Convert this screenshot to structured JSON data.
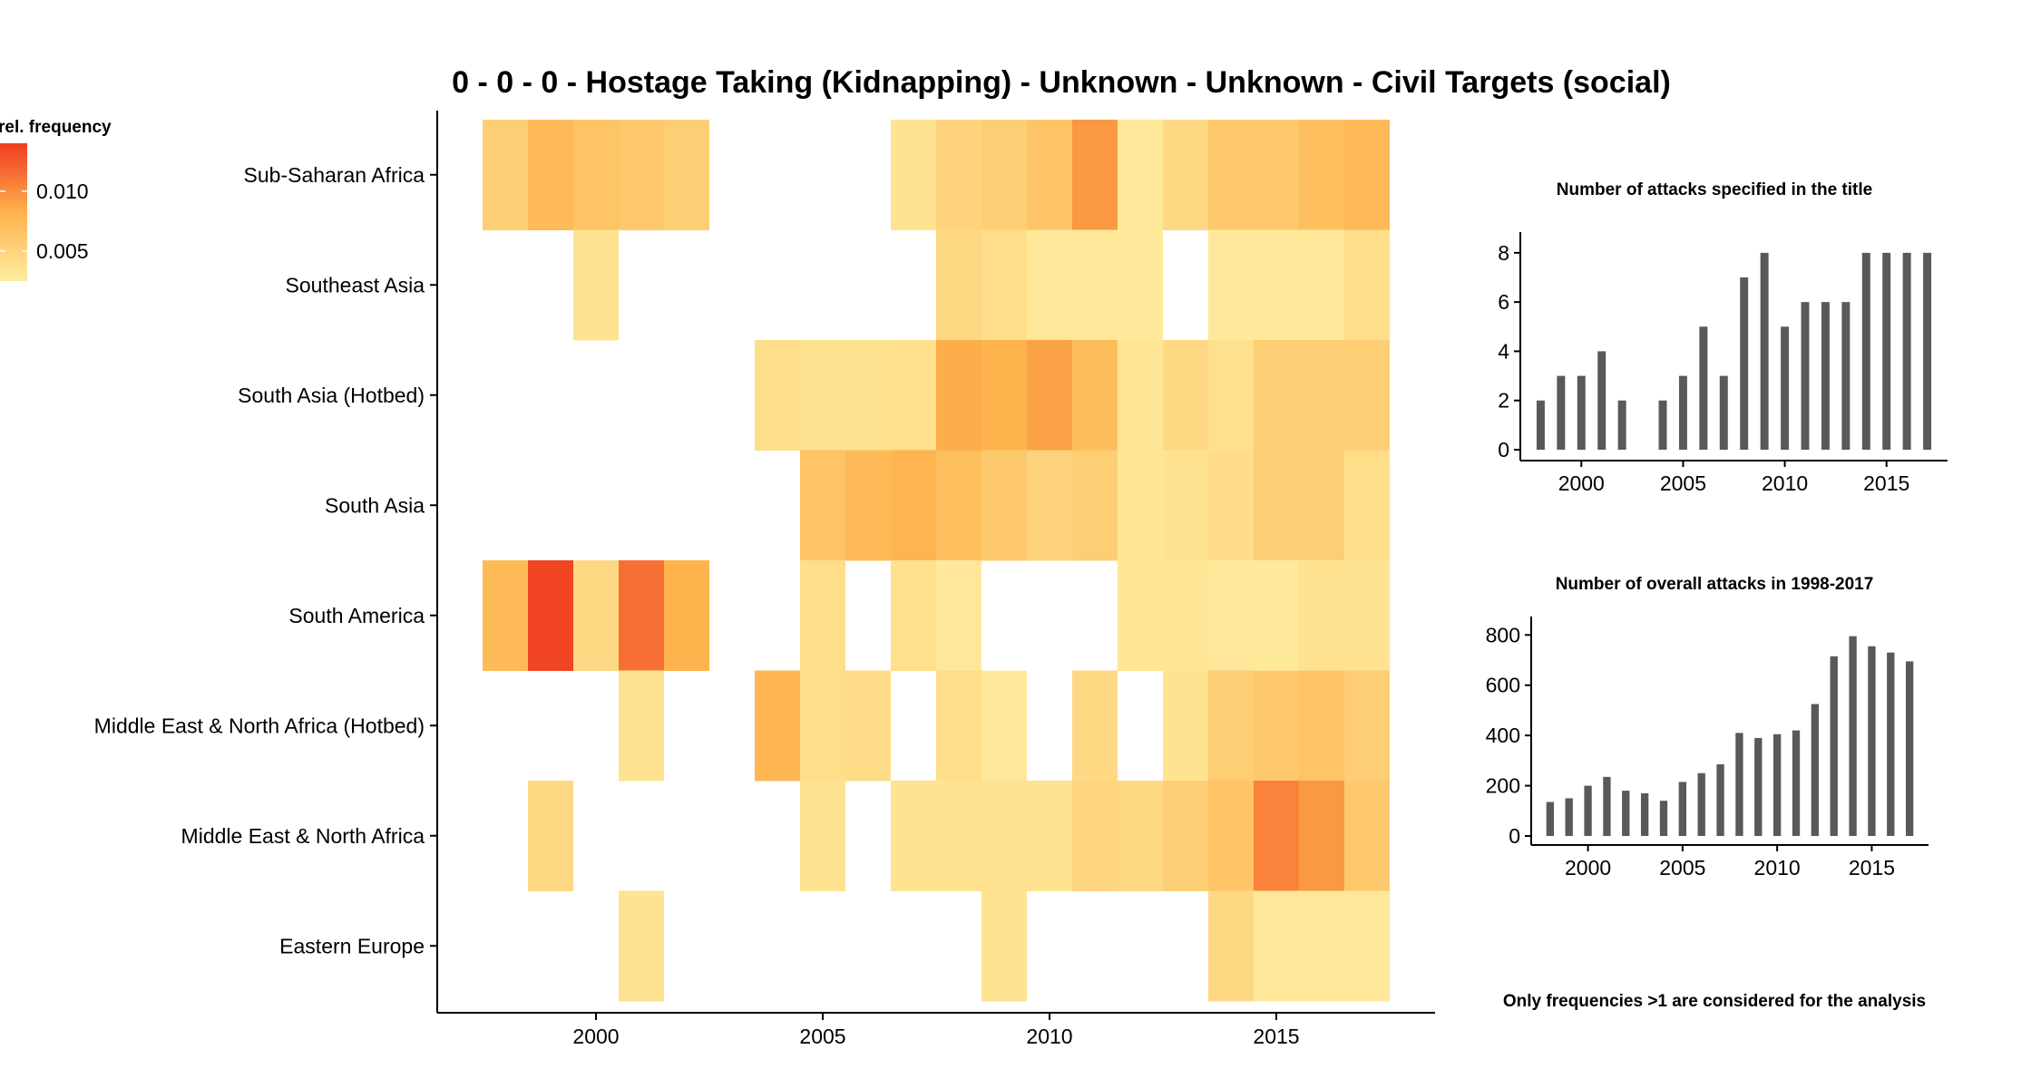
{
  "chart_data": [
    {
      "type": "heatmap",
      "title": "0 - 0 - 0 - Hostage Taking (Kidnapping) - Unknown - Unknown - Civil Targets (social)",
      "xlabel": "",
      "ylabel": "",
      "x_ticks": [
        2000,
        2005,
        2010,
        2015
      ],
      "xlim": [
        1997.5,
        2017.5
      ],
      "years": [
        1998,
        1999,
        2000,
        2001,
        2002,
        2003,
        2004,
        2005,
        2006,
        2007,
        2008,
        2009,
        2010,
        2011,
        2012,
        2013,
        2014,
        2015,
        2016,
        2017
      ],
      "regions": [
        "Sub-Saharan Africa",
        "Southeast Asia",
        "South Asia (Hotbed)",
        "South Asia",
        "South America",
        "Middle East & North Africa (Hotbed)",
        "Middle East & North Africa",
        "Eastern Europe"
      ],
      "values": [
        [
          0.0055,
          0.0075,
          0.0065,
          0.006,
          0.0055,
          null,
          null,
          null,
          null,
          0.0035,
          0.005,
          0.0055,
          0.0065,
          0.0095,
          0.003,
          0.0045,
          0.006,
          0.006,
          0.007,
          0.0075
        ],
        [
          null,
          null,
          0.0035,
          null,
          null,
          null,
          null,
          null,
          null,
          null,
          0.0045,
          0.004,
          0.003,
          0.003,
          0.003,
          null,
          0.003,
          0.003,
          0.003,
          0.004
        ],
        [
          null,
          null,
          null,
          null,
          null,
          null,
          0.004,
          0.0035,
          0.0035,
          0.0038,
          0.0085,
          0.0082,
          0.009,
          0.0072,
          0.0032,
          0.0045,
          0.0038,
          0.0055,
          0.0055,
          0.0055
        ],
        [
          null,
          null,
          null,
          null,
          null,
          null,
          null,
          0.0065,
          0.0075,
          0.008,
          0.007,
          0.006,
          0.005,
          0.0055,
          0.0032,
          0.0035,
          0.0042,
          0.0055,
          0.0055,
          0.004
        ],
        [
          0.0075,
          0.0135,
          0.0045,
          0.0115,
          0.0082,
          null,
          null,
          0.004,
          null,
          0.0038,
          0.003,
          null,
          null,
          null,
          0.0032,
          0.0032,
          0.003,
          0.0028,
          0.0035,
          0.0035
        ],
        [
          null,
          null,
          null,
          0.0035,
          null,
          null,
          0.0078,
          0.004,
          0.0042,
          null,
          0.004,
          0.003,
          null,
          0.0045,
          null,
          0.0035,
          0.0055,
          0.006,
          0.0065,
          0.0055
        ],
        [
          null,
          0.0045,
          null,
          null,
          null,
          null,
          null,
          0.0035,
          null,
          0.0035,
          0.0035,
          0.0035,
          0.0035,
          0.0048,
          0.0045,
          0.0055,
          0.0065,
          0.0105,
          0.0095,
          0.006
        ],
        [
          null,
          null,
          null,
          0.0035,
          null,
          null,
          null,
          null,
          null,
          null,
          null,
          0.0035,
          null,
          null,
          null,
          null,
          0.0045,
          0.003,
          0.003,
          0.003
        ]
      ],
      "legend": {
        "title": "rel. frequency",
        "ticks": [
          0.01,
          0.005
        ],
        "tick_labels": [
          "0.010",
          "0.005"
        ],
        "range": [
          0.0025,
          0.014
        ],
        "colors": [
          "#ffeda0",
          "#feb24c",
          "#f03b20"
        ],
        "placement": "top-left"
      }
    },
    {
      "type": "bar",
      "title": "Number of attacks specified in the title",
      "x": [
        1998,
        1999,
        2000,
        2001,
        2002,
        2004,
        2005,
        2006,
        2007,
        2008,
        2009,
        2010,
        2011,
        2012,
        2013,
        2014,
        2015,
        2016,
        2017
      ],
      "values": [
        2,
        3,
        3,
        4,
        2,
        2,
        3,
        5,
        3,
        7,
        8,
        5,
        6,
        6,
        6,
        8,
        8,
        8,
        8
      ],
      "xlim": [
        1997,
        2018
      ],
      "ylim": [
        0,
        8.4
      ],
      "x_ticks": [
        2000,
        2005,
        2010,
        2015
      ],
      "y_ticks": [
        0,
        2,
        4,
        6,
        8
      ],
      "bar_color": "#595959"
    },
    {
      "type": "bar",
      "title": "Number of overall attacks in 1998-2017",
      "x": [
        1998,
        1999,
        2000,
        2001,
        2002,
        2003,
        2004,
        2005,
        2006,
        2007,
        2008,
        2009,
        2010,
        2011,
        2012,
        2013,
        2014,
        2015,
        2016,
        2017
      ],
      "values": [
        135,
        150,
        200,
        235,
        180,
        170,
        140,
        215,
        250,
        285,
        410,
        390,
        405,
        420,
        525,
        715,
        795,
        755,
        730,
        695
      ],
      "xlim": [
        1997,
        2018
      ],
      "ylim": [
        0,
        830
      ],
      "x_ticks": [
        2000,
        2005,
        2010,
        2015
      ],
      "y_ticks": [
        0,
        200,
        400,
        600,
        800
      ],
      "bar_color": "#595959"
    }
  ],
  "note": "Only frequencies >1 are considered for the analysis"
}
